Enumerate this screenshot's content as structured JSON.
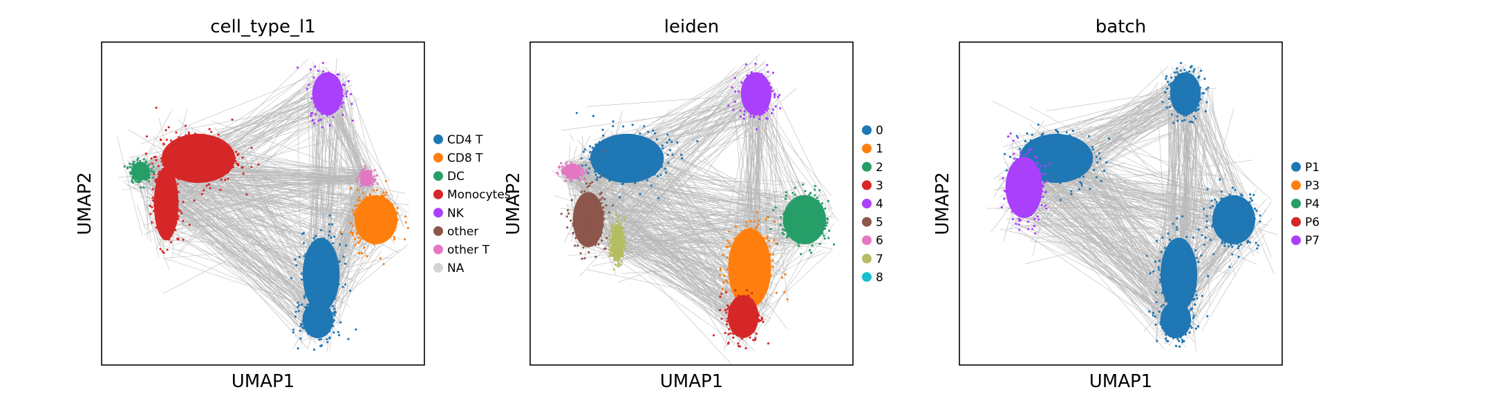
{
  "figure": {
    "description_free": true,
    "panels_count": 3
  },
  "chart_data": [
    {
      "type": "scatter",
      "subtype": "umap-embedding-with-graph-edges",
      "title": "cell_type_l1",
      "xlabel": "UMAP1",
      "ylabel": "UMAP2",
      "ticks": false,
      "grid": false,
      "edge_color": "#808080",
      "legend_position": "right",
      "legend": [
        {
          "label": "CD4 T",
          "color": "#1f77b4"
        },
        {
          "label": "CD8 T",
          "color": "#ff7f0e"
        },
        {
          "label": "DC",
          "color": "#279e68"
        },
        {
          "label": "Monocytes",
          "color": "#d62728"
        },
        {
          "label": "NK",
          "color": "#aa40fc"
        },
        {
          "label": "other",
          "color": "#8c564b"
        },
        {
          "label": "other T",
          "color": "#e377c2"
        },
        {
          "label": "NA",
          "color": "#d3d3d3"
        }
      ],
      "clusters": [
        {
          "label": "NK",
          "color": "#aa40fc",
          "x": 0.7,
          "y": 0.84,
          "rx": 0.05,
          "ry": 0.07
        },
        {
          "label": "Monocytes",
          "color": "#d62728",
          "x": 0.3,
          "y": 0.64,
          "rx": 0.12,
          "ry": 0.08
        },
        {
          "label": "Monocytes",
          "color": "#d62728",
          "x": 0.2,
          "y": 0.5,
          "rx": 0.04,
          "ry": 0.12
        },
        {
          "label": "DC",
          "color": "#279e68",
          "x": 0.12,
          "y": 0.6,
          "rx": 0.03,
          "ry": 0.03
        },
        {
          "label": "CD8 T",
          "color": "#ff7f0e",
          "x": 0.85,
          "y": 0.45,
          "rx": 0.07,
          "ry": 0.08
        },
        {
          "label": "other T",
          "color": "#e377c2",
          "x": 0.82,
          "y": 0.58,
          "rx": 0.02,
          "ry": 0.02
        },
        {
          "label": "CD4 T",
          "color": "#1f77b4",
          "x": 0.68,
          "y": 0.28,
          "rx": 0.06,
          "ry": 0.12
        },
        {
          "label": "CD4 T",
          "color": "#1f77b4",
          "x": 0.67,
          "y": 0.14,
          "rx": 0.05,
          "ry": 0.06
        }
      ]
    },
    {
      "type": "scatter",
      "subtype": "umap-embedding-with-graph-edges",
      "title": "leiden",
      "xlabel": "UMAP1",
      "ylabel": "UMAP2",
      "ticks": false,
      "grid": false,
      "edge_color": "#808080",
      "legend_position": "right",
      "legend": [
        {
          "label": "0",
          "color": "#1f77b4"
        },
        {
          "label": "1",
          "color": "#ff7f0e"
        },
        {
          "label": "2",
          "color": "#279e68"
        },
        {
          "label": "3",
          "color": "#d62728"
        },
        {
          "label": "4",
          "color": "#aa40fc"
        },
        {
          "label": "5",
          "color": "#8c564b"
        },
        {
          "label": "6",
          "color": "#e377c2"
        },
        {
          "label": "7",
          "color": "#b5bd61"
        },
        {
          "label": "8",
          "color": "#17becf"
        }
      ],
      "clusters": [
        {
          "label": "4",
          "color": "#aa40fc",
          "x": 0.7,
          "y": 0.84,
          "rx": 0.05,
          "ry": 0.07
        },
        {
          "label": "0",
          "color": "#1f77b4",
          "x": 0.3,
          "y": 0.64,
          "rx": 0.12,
          "ry": 0.08
        },
        {
          "label": "5",
          "color": "#8c564b",
          "x": 0.18,
          "y": 0.45,
          "rx": 0.05,
          "ry": 0.09
        },
        {
          "label": "6",
          "color": "#e377c2",
          "x": 0.13,
          "y": 0.6,
          "rx": 0.03,
          "ry": 0.02
        },
        {
          "label": "7",
          "color": "#b5bd61",
          "x": 0.27,
          "y": 0.38,
          "rx": 0.02,
          "ry": 0.06
        },
        {
          "label": "2",
          "color": "#279e68",
          "x": 0.85,
          "y": 0.45,
          "rx": 0.07,
          "ry": 0.08
        },
        {
          "label": "1",
          "color": "#ff7f0e",
          "x": 0.68,
          "y": 0.3,
          "rx": 0.07,
          "ry": 0.13
        },
        {
          "label": "3",
          "color": "#d62728",
          "x": 0.66,
          "y": 0.15,
          "rx": 0.05,
          "ry": 0.07
        }
      ]
    },
    {
      "type": "scatter",
      "subtype": "umap-embedding-with-graph-edges",
      "title": "batch",
      "xlabel": "UMAP1",
      "ylabel": "UMAP2",
      "ticks": false,
      "grid": false,
      "edge_color": "#808080",
      "legend_position": "right",
      "legend": [
        {
          "label": "P1",
          "color": "#1f77b4"
        },
        {
          "label": "P3",
          "color": "#ff7f0e"
        },
        {
          "label": "P4",
          "color": "#279e68"
        },
        {
          "label": "P6",
          "color": "#d62728"
        },
        {
          "label": "P7",
          "color": "#aa40fc"
        }
      ],
      "clusters": [
        {
          "label": "P1",
          "color": "#1f77b4",
          "x": 0.7,
          "y": 0.84,
          "rx": 0.05,
          "ry": 0.07
        },
        {
          "label": "P1",
          "color": "#1f77b4",
          "x": 0.3,
          "y": 0.64,
          "rx": 0.12,
          "ry": 0.08
        },
        {
          "label": "P7",
          "color": "#aa40fc",
          "x": 0.2,
          "y": 0.55,
          "rx": 0.06,
          "ry": 0.1
        },
        {
          "label": "P1",
          "color": "#1f77b4",
          "x": 0.85,
          "y": 0.45,
          "rx": 0.07,
          "ry": 0.08
        },
        {
          "label": "P1",
          "color": "#1f77b4",
          "x": 0.68,
          "y": 0.28,
          "rx": 0.06,
          "ry": 0.12
        },
        {
          "label": "P1",
          "color": "#1f77b4",
          "x": 0.67,
          "y": 0.14,
          "rx": 0.05,
          "ry": 0.06
        }
      ]
    }
  ]
}
